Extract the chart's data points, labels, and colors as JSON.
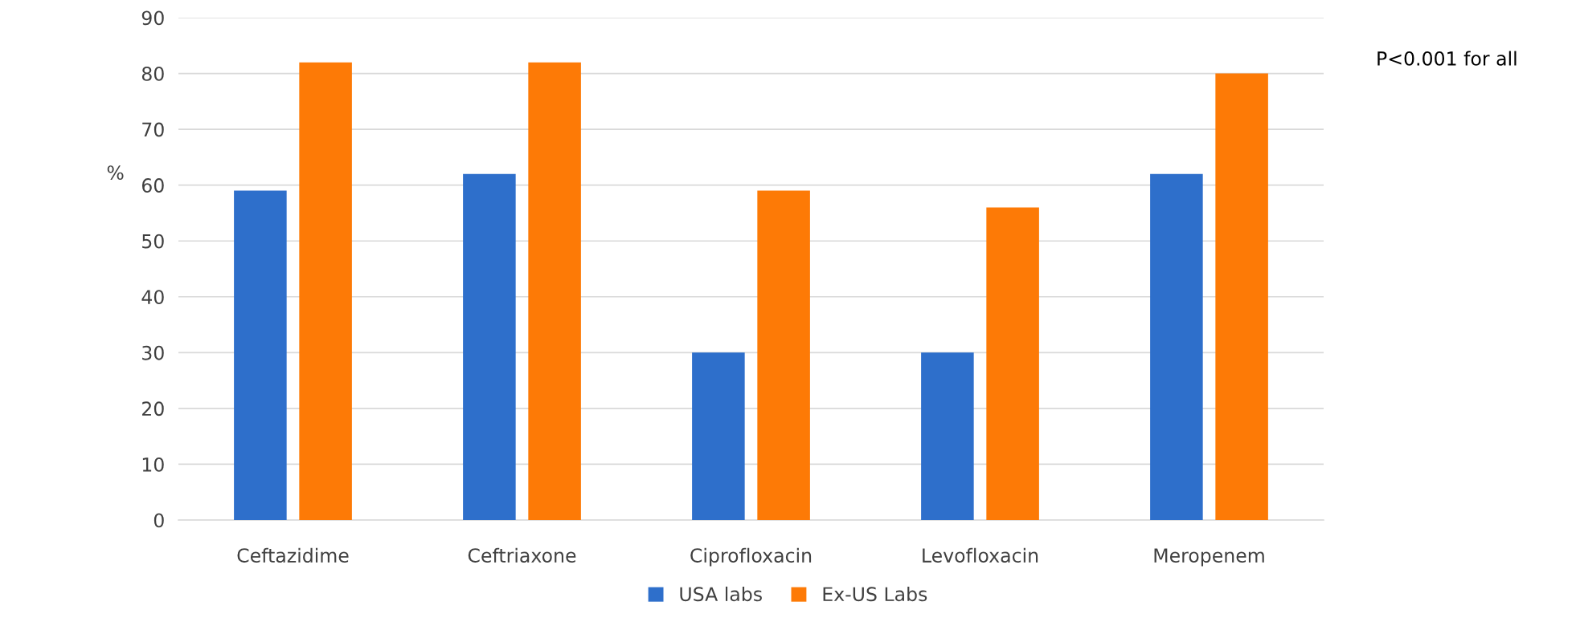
{
  "chart_data": {
    "type": "bar",
    "ylabel": "%",
    "categories": [
      "Ceftazidime",
      "Ceftriaxone",
      "Ciprofloxacin",
      "Levofloxacin",
      "Meropenem"
    ],
    "series": [
      {
        "name": "USA labs",
        "color": "#2e6fcb",
        "values": [
          59,
          62,
          30,
          30,
          62
        ]
      },
      {
        "name": "Ex-US Labs",
        "color": "#fd7a06",
        "values": [
          82,
          82,
          59,
          56,
          80
        ]
      }
    ],
    "ylim": [
      0,
      90
    ],
    "yticks": [
      0,
      10,
      20,
      30,
      40,
      50,
      60,
      70,
      80,
      90
    ],
    "grid": "y",
    "legend": "bottom",
    "annotations": [
      "P<0.001 for all"
    ]
  }
}
